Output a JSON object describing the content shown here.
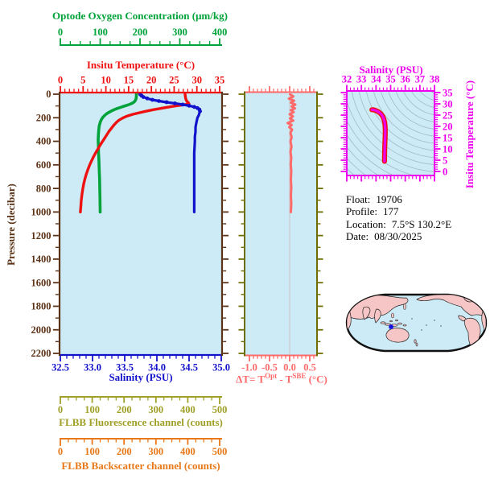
{
  "colors": {
    "green": "#00A339",
    "red": "#EE1111",
    "blue": "#1212CC",
    "brown": "#5C3317",
    "salmon": "#FF6B6B",
    "olive": "#6E6E00",
    "magenta": "#EE00EE",
    "fluor": "#A0A028",
    "back": "#E87818",
    "panel_bg": "#CDEBF6",
    "contour": "#94AAB2",
    "zero_line": "#C9C9C9",
    "land": "#F5C6C5",
    "map_outline": "#111111",
    "marker": "#1414E6",
    "info_text": "#000000"
  },
  "titles": {
    "oxygen": "Optode Oxygen Concentration (μm/kg)",
    "temperature": "Insitu Temperature (°C)",
    "salinity": "Salinity (PSU)",
    "fluorescence": "FLBB Fluorescence channel (counts)",
    "backscatter": "FLBB Backscatter channel (counts)",
    "pressure": "Pressure (decibar)",
    "ts_salinity": "Salinity (PSU)",
    "ts_temperature": "Insitu Temperature (°C)",
    "dt_p1": "ΔT= T",
    "dt_s1": "Opt",
    "dt_p2": " - T",
    "dt_s2": "SBE",
    "dt_p3": " (°C)"
  },
  "info": {
    "lines": [
      {
        "label": "Float:",
        "value": "19706"
      },
      {
        "label": "Profile:",
        "value": "177"
      },
      {
        "label": "Location:",
        "value": "7.5°S  130.2°E"
      },
      {
        "label": "Date:",
        "value": "08/30/2025"
      }
    ]
  },
  "chart_data": [
    {
      "type": "line",
      "panel": "main-profile",
      "y_axis": {
        "label": "Pressure (decibar)",
        "range": [
          0,
          2200
        ],
        "ticks": [
          0,
          200,
          400,
          600,
          800,
          1000,
          1200,
          1400,
          1600,
          1800,
          2000,
          2200
        ],
        "minor_step": 100
      },
      "x_axes": {
        "temperature": {
          "label": "Insitu Temperature (°C)",
          "range": [
            0,
            35
          ],
          "ticks": [
            0,
            5,
            10,
            15,
            20,
            25,
            30,
            35
          ],
          "minor_step": 1
        },
        "oxygen": {
          "label": "Optode Oxygen Concentration (μm/kg)",
          "range": [
            0,
            400
          ],
          "ticks": [
            0,
            100,
            200,
            300,
            400
          ],
          "minor_step": 25
        },
        "salinity": {
          "label": "Salinity (PSU)",
          "range": [
            32.5,
            35.0
          ],
          "ticks": [
            "32.5",
            "33.0",
            "33.5",
            "34.0",
            "34.5",
            "35.0"
          ],
          "minor_step": 0.1
        },
        "fluorescence": {
          "label": "FLBB Fluorescence channel (counts)",
          "range": [
            0,
            500
          ],
          "ticks": [
            0,
            100,
            200,
            300,
            400,
            500
          ],
          "minor_step": 25
        },
        "backscatter": {
          "label": "FLBB Backscatter channel (counts)",
          "range": [
            0,
            500
          ],
          "ticks": [
            0,
            100,
            200,
            300,
            400,
            500
          ],
          "minor_step": 25
        }
      },
      "series": [
        {
          "name": "temperature",
          "x_axis": "temperature",
          "color": "#EE1111",
          "points": [
            [
              0,
              27.4
            ],
            [
              15,
              27.45
            ],
            [
              30,
              27.5
            ],
            [
              45,
              27.6
            ],
            [
              60,
              27.8
            ],
            [
              72,
              28.1
            ],
            [
              80,
              28.25
            ],
            [
              88,
              27.4
            ],
            [
              96,
              26.0
            ],
            [
              104,
              24.6
            ],
            [
              112,
              23.3
            ],
            [
              122,
              21.8
            ],
            [
              132,
              20.4
            ],
            [
              145,
              18.8
            ],
            [
              158,
              17.3
            ],
            [
              170,
              16.0
            ],
            [
              185,
              14.7
            ],
            [
              200,
              13.8
            ],
            [
              220,
              12.9
            ],
            [
              240,
              12.3
            ],
            [
              265,
              11.7
            ],
            [
              290,
              11.2
            ],
            [
              315,
              10.7
            ],
            [
              345,
              10.2
            ],
            [
              375,
              9.7
            ],
            [
              405,
              9.2
            ],
            [
              435,
              8.7
            ],
            [
              465,
              8.25
            ],
            [
              495,
              7.8
            ],
            [
              530,
              7.3
            ],
            [
              565,
              6.85
            ],
            [
              600,
              6.45
            ],
            [
              640,
              6.05
            ],
            [
              680,
              5.7
            ],
            [
              720,
              5.4
            ],
            [
              760,
              5.15
            ],
            [
              800,
              4.95
            ],
            [
              850,
              4.75
            ],
            [
              900,
              4.6
            ],
            [
              950,
              4.5
            ],
            [
              1000,
              4.4
            ]
          ]
        },
        {
          "name": "salinity",
          "x_axis": "salinity",
          "color": "#1212CC",
          "points": [
            [
              0,
              33.74
            ],
            [
              12,
              33.76
            ],
            [
              24,
              33.79
            ],
            [
              36,
              33.85
            ],
            [
              48,
              33.93
            ],
            [
              58,
              34.03
            ],
            [
              68,
              34.15
            ],
            [
              78,
              34.28
            ],
            [
              88,
              34.4
            ],
            [
              98,
              34.5
            ],
            [
              108,
              34.58
            ],
            [
              118,
              34.63
            ],
            [
              130,
              34.66
            ],
            [
              145,
              34.67
            ],
            [
              160,
              34.66
            ],
            [
              180,
              34.65
            ],
            [
              200,
              34.63
            ],
            [
              225,
              34.62
            ],
            [
              250,
              34.61
            ],
            [
              280,
              34.6
            ],
            [
              320,
              34.6
            ],
            [
              360,
              34.59
            ],
            [
              400,
              34.59
            ],
            [
              450,
              34.585
            ],
            [
              500,
              34.58
            ],
            [
              560,
              34.58
            ],
            [
              620,
              34.58
            ],
            [
              700,
              34.58
            ],
            [
              780,
              34.58
            ],
            [
              860,
              34.58
            ],
            [
              930,
              34.58
            ],
            [
              1000,
              34.58
            ]
          ]
        },
        {
          "name": "oxygen",
          "x_axis": "oxygen",
          "color": "#00A339",
          "points": [
            [
              0,
              191
            ],
            [
              15,
              191
            ],
            [
              30,
              190.5
            ],
            [
              45,
              189.5
            ],
            [
              60,
              187
            ],
            [
              72,
              183
            ],
            [
              82,
              177
            ],
            [
              92,
              169
            ],
            [
              102,
              160
            ],
            [
              112,
              151
            ],
            [
              124,
              141
            ],
            [
              136,
              132
            ],
            [
              150,
              124
            ],
            [
              164,
              117
            ],
            [
              178,
              112
            ],
            [
              195,
              107
            ],
            [
              215,
              103
            ],
            [
              240,
              100
            ],
            [
              270,
              97.5
            ],
            [
              300,
              96.5
            ],
            [
              340,
              95.5
            ],
            [
              390,
              95
            ],
            [
              440,
              95.5
            ],
            [
              500,
              96
            ],
            [
              570,
              97
            ],
            [
              640,
              97.5
            ],
            [
              720,
              98.5
            ],
            [
              800,
              99
            ],
            [
              900,
              99.5
            ],
            [
              1000,
              100
            ]
          ]
        }
      ]
    },
    {
      "type": "line",
      "panel": "delta-t",
      "title": "ΔT= T^Opt - T^SBE (°C)",
      "x_axis": {
        "range": [
          -1.1,
          0.66
        ],
        "ticks": [
          "-1.0",
          "-0.5",
          "0.0",
          "0.5"
        ],
        "minor_step": 0.1
      },
      "y_axis": {
        "range": [
          0,
          2200
        ],
        "minor_step": 100
      },
      "zero_reference_line": 0.0,
      "series": [
        {
          "name": "delta-temperature",
          "color": "#FF6B6B",
          "points": [
            [
              0,
              0.01
            ],
            [
              20,
              0.09
            ],
            [
              38,
              -0.02
            ],
            [
              55,
              0.11
            ],
            [
              72,
              0.03
            ],
            [
              88,
              0.14
            ],
            [
              104,
              0.05
            ],
            [
              120,
              0.13
            ],
            [
              136,
              0.03
            ],
            [
              152,
              0.1
            ],
            [
              170,
              0.0
            ],
            [
              188,
              0.08
            ],
            [
              206,
              0.01
            ],
            [
              225,
              0.09
            ],
            [
              245,
              -0.05
            ],
            [
              262,
              0.05
            ],
            [
              280,
              -0.01
            ],
            [
              300,
              0.06
            ],
            [
              330,
              0.02
            ],
            [
              365,
              0.05
            ],
            [
              400,
              0.02
            ],
            [
              445,
              0.045
            ],
            [
              490,
              0.02
            ],
            [
              540,
              0.04
            ],
            [
              595,
              0.025
            ],
            [
              655,
              0.04
            ],
            [
              720,
              0.03
            ],
            [
              790,
              0.04
            ],
            [
              860,
              0.03
            ],
            [
              930,
              0.04
            ],
            [
              1000,
              0.03
            ]
          ]
        }
      ]
    },
    {
      "type": "line",
      "panel": "ts-diagram",
      "x_axis": {
        "label": "Salinity (PSU)",
        "range": [
          32,
          38
        ],
        "ticks": [
          32,
          33,
          34,
          35,
          36,
          37,
          38
        ],
        "minor_step": 0.25
      },
      "y_axis": {
        "label": "Insitu Temperature (°C)",
        "range": [
          0,
          35
        ],
        "ticks": [
          0,
          5,
          10,
          15,
          20,
          25,
          30,
          35
        ],
        "minor_step": 1
      },
      "background_contours": "isopycnals",
      "series": [
        {
          "name": "ts-curve",
          "color": "#EE00EE",
          "outline": "#EE1111",
          "points": [
            [
              33.72,
              27.4
            ],
            [
              33.82,
              27.35
            ],
            [
              33.93,
              27.15
            ],
            [
              34.05,
              26.85
            ],
            [
              34.17,
              26.45
            ],
            [
              34.28,
              25.9
            ],
            [
              34.38,
              25.2
            ],
            [
              34.47,
              24.3
            ],
            [
              34.54,
              23.2
            ],
            [
              34.59,
              21.8
            ],
            [
              34.62,
              20.2
            ],
            [
              34.63,
              18.4
            ],
            [
              34.63,
              16.5
            ],
            [
              34.62,
              14.6
            ],
            [
              34.61,
              12.8
            ],
            [
              34.6,
              11.0
            ],
            [
              34.59,
              9.3
            ],
            [
              34.585,
              7.8
            ],
            [
              34.58,
              6.5
            ],
            [
              34.58,
              5.4
            ],
            [
              34.58,
              4.5
            ]
          ]
        }
      ]
    }
  ]
}
